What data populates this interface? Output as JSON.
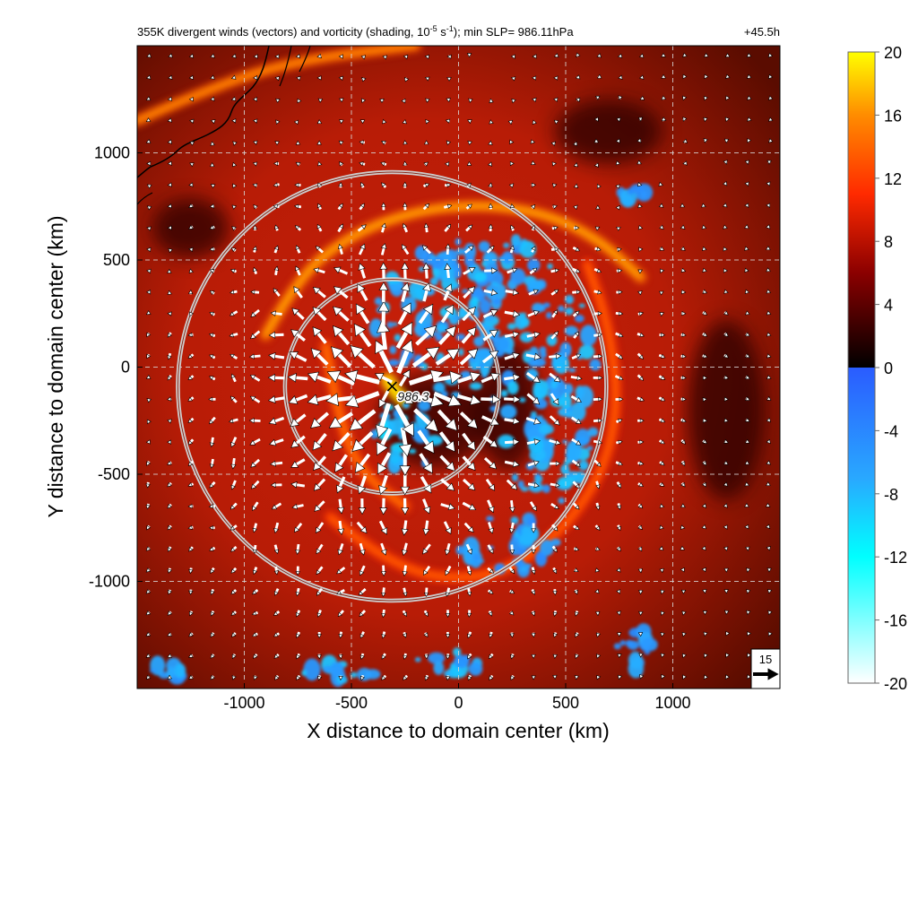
{
  "chart_data": {
    "type": "heatmap",
    "title_main": "355K divergent winds (vectors) and vorticity (shading, 10",
    "title_exp1": "-5",
    "title_mid": " s",
    "title_exp2": "-1",
    "title_end": "); min SLP= 986.11hPa",
    "forecast_time": "+45.5h",
    "xlabel": "X distance to domain center (km)",
    "ylabel": "Y distance to domain center (km)",
    "xlim": [
      -1500,
      1500
    ],
    "ylim": [
      -1500,
      1500
    ],
    "x_ticks": [
      -1000,
      -500,
      0,
      500,
      1000
    ],
    "x_tick_labels": [
      "-1000",
      "-500",
      "0",
      "500",
      "1000"
    ],
    "y_ticks": [
      -1000,
      -500,
      0,
      500,
      1000
    ],
    "y_tick_labels": [
      "-1000",
      "-500",
      "0",
      "500",
      "1000"
    ],
    "grid": true,
    "colorbar": {
      "range": [
        -20,
        20
      ],
      "ticks": [
        20,
        16,
        12,
        8,
        4,
        0,
        -4,
        -8,
        -12,
        -16,
        -20
      ],
      "tick_labels": [
        "20",
        "16",
        "12",
        "8",
        "4",
        "0",
        "-4",
        "-8",
        "-12",
        "-16",
        "-20"
      ],
      "negative_colors": [
        "#2a5cff",
        "#29a8ff",
        "#00ffff",
        "#ffffff"
      ],
      "positive_colors": [
        "#000000",
        "#8b0000",
        "#ff2a00",
        "#ff8c00",
        "#ffff00"
      ]
    },
    "storm_center": {
      "x": -310,
      "y": -90,
      "label": "986.3"
    },
    "range_rings_km": [
      500,
      1000
    ],
    "reference_vector": {
      "label": "15",
      "magnitude": 15
    },
    "features": [
      {
        "type": "positive_band",
        "comment": "outer yellow-orange spiral band",
        "points": [
          [
            -900,
            150
          ],
          [
            -750,
            420
          ],
          [
            -500,
            620
          ],
          [
            -200,
            730
          ],
          [
            100,
            760
          ],
          [
            400,
            720
          ],
          [
            650,
            600
          ],
          [
            850,
            420
          ]
        ],
        "value": 14
      },
      {
        "type": "positive_band",
        "comment": "northern background band",
        "points": [
          [
            -1500,
            1150
          ],
          [
            -1100,
            1330
          ],
          [
            -700,
            1440
          ],
          [
            -200,
            1500
          ]
        ],
        "value": 13
      },
      {
        "type": "positive_band",
        "comment": "southeast arc",
        "points": [
          [
            -600,
            -700
          ],
          [
            -300,
            -950
          ],
          [
            100,
            -1000
          ],
          [
            400,
            -850
          ],
          [
            650,
            -550
          ],
          [
            750,
            -200
          ],
          [
            700,
            200
          ],
          [
            600,
            480
          ]
        ],
        "value": 11
      },
      {
        "type": "positive_band",
        "comment": "inner arc",
        "points": [
          [
            -620,
            100
          ],
          [
            -560,
            -250
          ],
          [
            -450,
            -500
          ],
          [
            -250,
            -650
          ]
        ],
        "value": 12
      },
      {
        "type": "positive_band",
        "comment": "core",
        "points": [
          [
            -330,
            -60
          ],
          [
            -300,
            -110
          ],
          [
            -260,
            -150
          ]
        ],
        "value": 18
      }
    ],
    "negative_blobs": [
      {
        "x": -80,
        "y": 180,
        "rx": 320,
        "ry": 380,
        "value": -5
      },
      {
        "x": 420,
        "y": -120,
        "rx": 260,
        "ry": 520,
        "value": -5
      },
      {
        "x": 260,
        "y": -820,
        "rx": 280,
        "ry": 130,
        "value": -4
      },
      {
        "x": -250,
        "y": -330,
        "rx": 160,
        "ry": 170,
        "value": -6
      },
      {
        "x": 150,
        "y": 450,
        "rx": 280,
        "ry": 170,
        "value": -5
      },
      {
        "x": -1350,
        "y": -1420,
        "rx": 100,
        "ry": 40,
        "value": -5
      },
      {
        "x": -550,
        "y": -1420,
        "rx": 180,
        "ry": 40,
        "value": -5
      },
      {
        "x": -50,
        "y": -1380,
        "rx": 150,
        "ry": 60,
        "value": -5
      },
      {
        "x": 800,
        "y": 800,
        "rx": 90,
        "ry": 40,
        "value": -4
      },
      {
        "x": 820,
        "y": -1300,
        "rx": 80,
        "ry": 120,
        "value": -4
      }
    ],
    "vector_grid_spacing_km": 100,
    "divergent_flow": {
      "source": {
        "x": -300,
        "y": -100
      },
      "peak_speed": 22,
      "peak_radius_km": 140,
      "decay_km": 500
    }
  }
}
